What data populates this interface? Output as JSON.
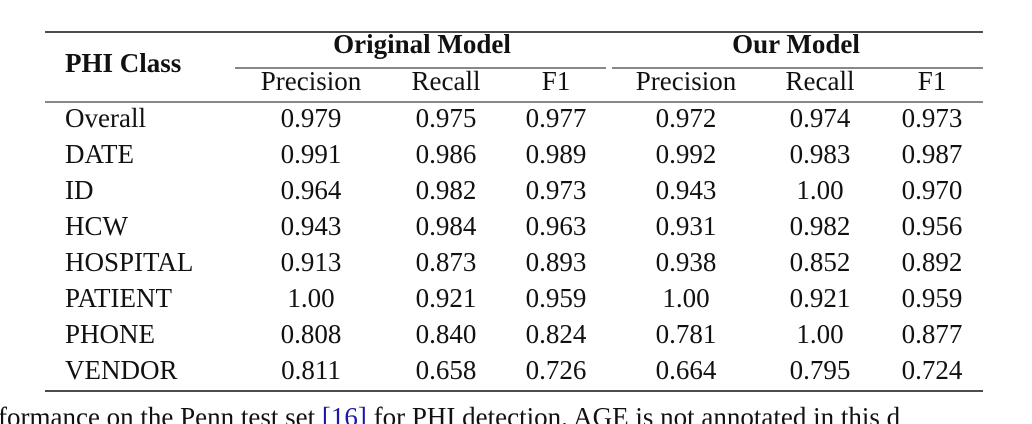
{
  "table": {
    "header": {
      "row_label": "PHI Class",
      "groups": [
        "Original Model",
        "Our Model"
      ],
      "columns": [
        "Precision",
        "Recall",
        "F1",
        "Precision",
        "Recall",
        "F1"
      ]
    },
    "rows": [
      [
        "Overall",
        "0.979",
        "0.975",
        "0.977",
        "0.972",
        "0.974",
        "0.973"
      ],
      [
        "DATE",
        "0.991",
        "0.986",
        "0.989",
        "0.992",
        "0.983",
        "0.987"
      ],
      [
        "ID",
        "0.964",
        "0.982",
        "0.973",
        "0.943",
        "1.00",
        "0.970"
      ],
      [
        "HCW",
        "0.943",
        "0.984",
        "0.963",
        "0.931",
        "0.982",
        "0.956"
      ],
      [
        "HOSPITAL",
        "0.913",
        "0.873",
        "0.893",
        "0.938",
        "0.852",
        "0.892"
      ],
      [
        "PATIENT",
        "1.00",
        "0.921",
        "0.959",
        "1.00",
        "0.921",
        "0.959"
      ],
      [
        "PHONE",
        "0.808",
        "0.840",
        "0.824",
        "0.781",
        "1.00",
        "0.877"
      ],
      [
        "VENDOR",
        "0.811",
        "0.658",
        "0.726",
        "0.664",
        "0.795",
        "0.724"
      ]
    ]
  },
  "caption": {
    "before": "formance on the Penn test set ",
    "ref": "[16]",
    "after": " for PHI detection. AGE is not annotated in this d"
  }
}
